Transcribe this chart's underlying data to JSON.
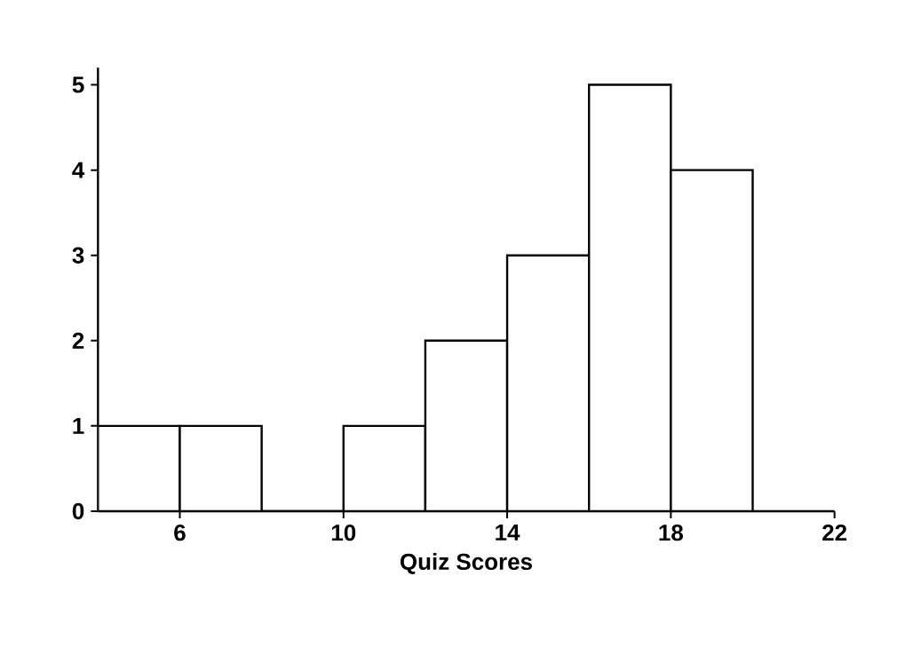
{
  "chart_data": {
    "type": "histogram",
    "xlabel": "Quiz Scores",
    "bins": [
      4,
      6,
      8,
      10,
      12,
      14,
      16,
      18,
      20
    ],
    "values": [
      1,
      1,
      0,
      1,
      2,
      3,
      5,
      4
    ],
    "xlim": [
      4,
      22
    ],
    "ylim": [
      0,
      5.2
    ],
    "xticks": [
      6,
      10,
      14,
      18,
      22
    ],
    "yticks": [
      0,
      1,
      2,
      3,
      4,
      5
    ],
    "color": "#ffffff",
    "grid": false
  }
}
